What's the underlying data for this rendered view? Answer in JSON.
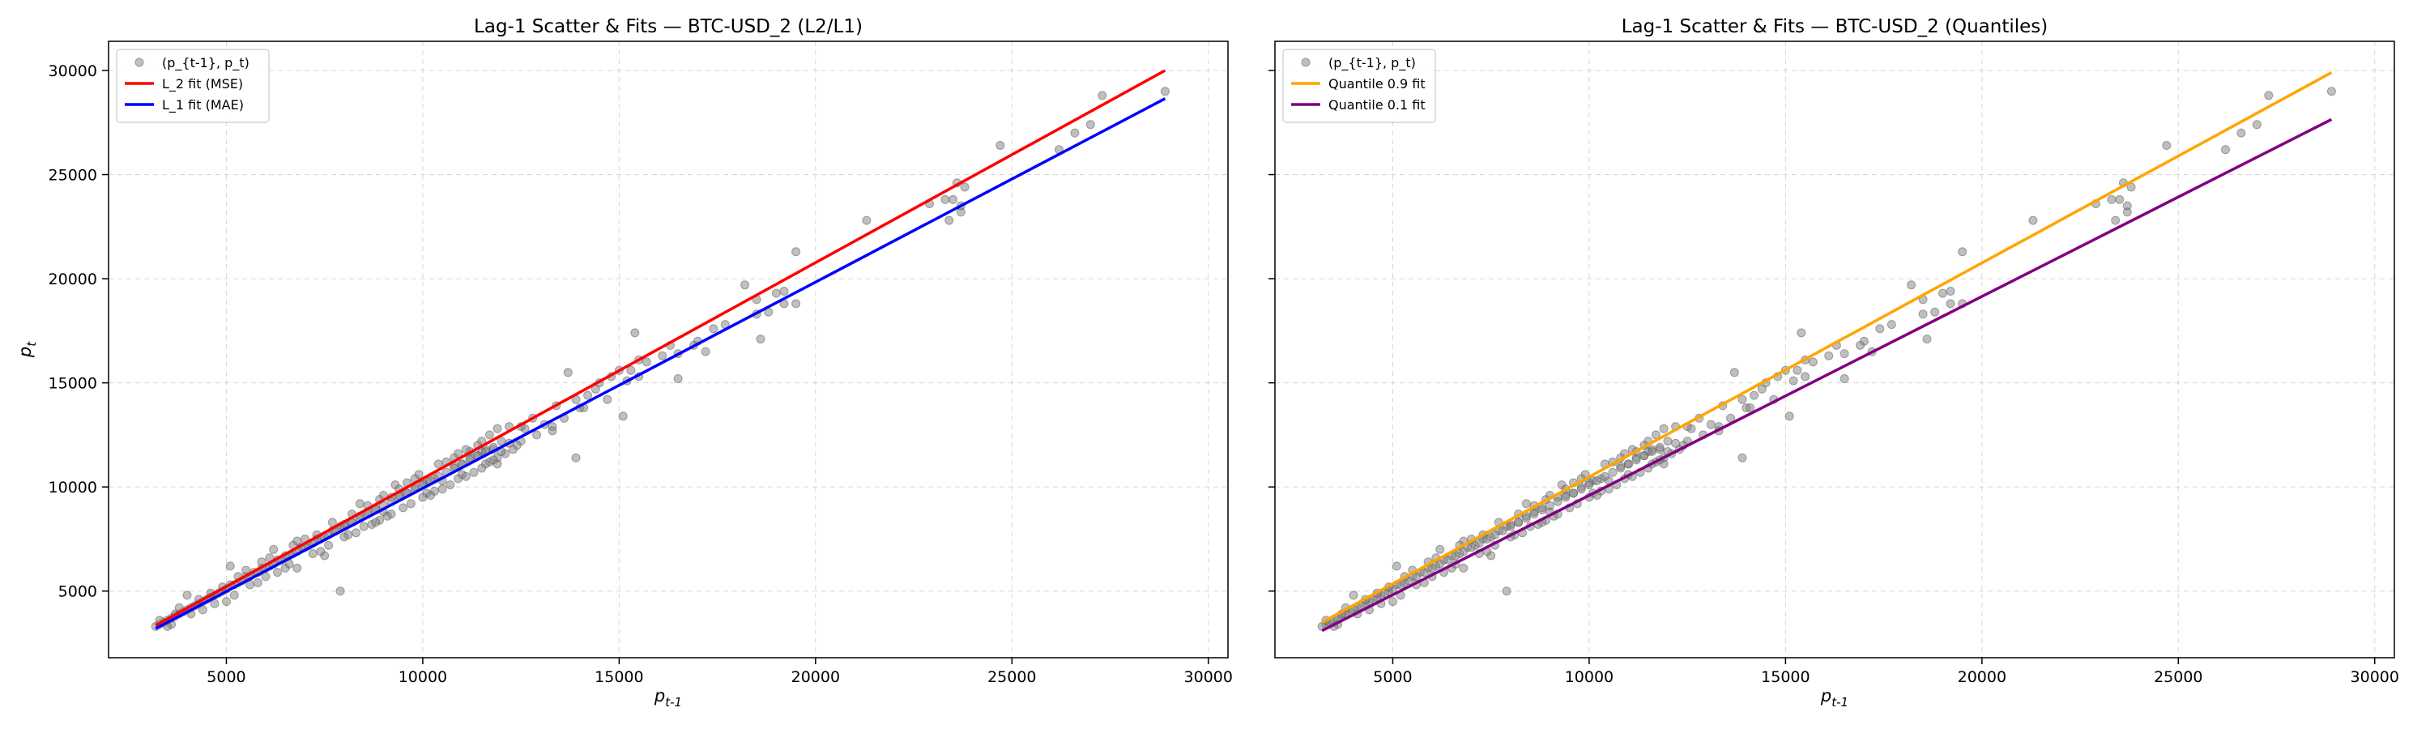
{
  "chart_data": [
    {
      "type": "scatter",
      "title": "Lag-1 Scatter & Fits — BTC-USD_2 (L2/L1)",
      "xlabel": "p_{t-1}",
      "ylabel": "p_t",
      "xlim": [
        2000,
        30500
      ],
      "ylim": [
        1800,
        31400
      ],
      "xticks": [
        5000,
        10000,
        15000,
        20000,
        25000,
        30000
      ],
      "yticks": [
        5000,
        10000,
        15000,
        20000,
        25000,
        30000
      ],
      "grid": true,
      "legend_position": "top-left",
      "scatter": {
        "name": "(p_{t-1}, p_t)",
        "color": "#808080"
      },
      "lines": [
        {
          "name": "L_2 fit (MSE)",
          "color": "#ff0000",
          "x": [
            3200,
            28900
          ],
          "y": [
            3350,
            30000
          ]
        },
        {
          "name": "L_1 fit (MAE)",
          "color": "#0000ff",
          "x": [
            3200,
            28900
          ],
          "y": [
            3200,
            28650
          ]
        }
      ]
    },
    {
      "type": "scatter",
      "title": "Lag-1 Scatter & Fits — BTC-USD_2 (Quantiles)",
      "xlabel": "p_{t-1}",
      "ylabel": "",
      "xlim": [
        2000,
        30500
      ],
      "ylim": [
        1800,
        31400
      ],
      "xticks": [
        5000,
        10000,
        15000,
        20000,
        25000,
        30000
      ],
      "yticks": [
        5000,
        10000,
        15000,
        20000,
        25000,
        30000
      ],
      "grid": true,
      "legend_position": "top-left",
      "scatter": {
        "name": "(p_{t-1}, p_t)",
        "color": "#808080"
      },
      "lines": [
        {
          "name": "Quantile 0.9 fit",
          "color": "#ffa500",
          "x": [
            3200,
            28900
          ],
          "y": [
            3500,
            29900
          ]
        },
        {
          "name": "Quantile 0.1 fit",
          "color": "#800080",
          "x": [
            3200,
            28900
          ],
          "y": [
            3100,
            27650
          ]
        }
      ]
    }
  ],
  "scatter_points": [
    [
      28900,
      29000
    ],
    [
      27300,
      28800
    ],
    [
      26600,
      27000
    ],
    [
      26200,
      26200
    ],
    [
      27000,
      27400
    ],
    [
      24700,
      26400
    ],
    [
      23800,
      24400
    ],
    [
      23600,
      24600
    ],
    [
      23500,
      23800
    ],
    [
      23700,
      23200
    ],
    [
      23300,
      23800
    ],
    [
      22900,
      23600
    ],
    [
      23700,
      23500
    ],
    [
      23400,
      22800
    ],
    [
      21300,
      22800
    ],
    [
      19500,
      21300
    ],
    [
      19200,
      19400
    ],
    [
      19000,
      19300
    ],
    [
      19500,
      18800
    ],
    [
      19200,
      18800
    ],
    [
      18500,
      19000
    ],
    [
      18200,
      19700
    ],
    [
      18500,
      18300
    ],
    [
      18600,
      17100
    ],
    [
      18800,
      18400
    ],
    [
      17700,
      17800
    ],
    [
      17400,
      17600
    ],
    [
      17000,
      17000
    ],
    [
      16900,
      16800
    ],
    [
      17200,
      16500
    ],
    [
      16500,
      16400
    ],
    [
      16300,
      16800
    ],
    [
      16100,
      16300
    ],
    [
      15700,
      16000
    ],
    [
      15500,
      16100
    ],
    [
      15500,
      15300
    ],
    [
      15300,
      15600
    ],
    [
      15200,
      15100
    ],
    [
      15000,
      15600
    ],
    [
      15400,
      17400
    ],
    [
      16500,
      15200
    ],
    [
      15100,
      13400
    ],
    [
      14800,
      15300
    ],
    [
      14500,
      15000
    ],
    [
      14400,
      14700
    ],
    [
      14200,
      14400
    ],
    [
      13900,
      14200
    ],
    [
      14000,
      13800
    ],
    [
      13700,
      15500
    ],
    [
      13600,
      13300
    ],
    [
      13900,
      11400
    ],
    [
      13400,
      13900
    ],
    [
      13300,
      12900
    ],
    [
      13100,
      13000
    ],
    [
      12800,
      13300
    ],
    [
      12600,
      12800
    ],
    [
      12500,
      12200
    ],
    [
      12400,
      12000
    ],
    [
      12200,
      12100
    ],
    [
      12300,
      11800
    ],
    [
      12000,
      12200
    ],
    [
      11900,
      11400
    ],
    [
      11800,
      11800
    ],
    [
      11700,
      12500
    ],
    [
      11600,
      11800
    ],
    [
      11500,
      11700
    ],
    [
      11400,
      11500
    ],
    [
      11200,
      11400
    ],
    [
      11000,
      10600
    ],
    [
      11900,
      12800
    ],
    [
      12200,
      12900
    ],
    [
      11000,
      11100
    ],
    [
      10800,
      11000
    ],
    [
      10500,
      10300
    ],
    [
      10300,
      10400
    ],
    [
      10100,
      10300
    ],
    [
      10000,
      10200
    ],
    [
      9800,
      10000
    ],
    [
      9600,
      9700
    ],
    [
      9400,
      9600
    ],
    [
      9200,
      9500
    ],
    [
      9000,
      8800
    ],
    [
      8800,
      9000
    ],
    [
      8600,
      8800
    ],
    [
      8400,
      8600
    ],
    [
      8200,
      8300
    ],
    [
      8000,
      8200
    ],
    [
      7900,
      8100
    ],
    [
      7700,
      7900
    ],
    [
      7500,
      7600
    ],
    [
      7300,
      7500
    ],
    [
      7100,
      7200
    ],
    [
      6900,
      7100
    ],
    [
      6700,
      6800
    ],
    [
      6500,
      6700
    ],
    [
      6300,
      6500
    ],
    [
      6100,
      6200
    ],
    [
      5900,
      6100
    ],
    [
      5700,
      5900
    ],
    [
      5500,
      5700
    ],
    [
      5300,
      5400
    ],
    [
      5100,
      5300
    ],
    [
      4900,
      5000
    ],
    [
      4700,
      4800
    ],
    [
      4500,
      4600
    ],
    [
      4300,
      4400
    ],
    [
      4100,
      4200
    ],
    [
      3900,
      4000
    ],
    [
      3700,
      3800
    ],
    [
      3500,
      3600
    ],
    [
      3300,
      3400
    ],
    [
      3200,
      3300
    ],
    [
      3400,
      3500
    ],
    [
      3600,
      3700
    ],
    [
      3800,
      3900
    ],
    [
      4000,
      4100
    ],
    [
      4200,
      4300
    ],
    [
      4400,
      4500
    ],
    [
      4600,
      4700
    ],
    [
      4800,
      4900
    ],
    [
      5000,
      5100
    ],
    [
      5200,
      5300
    ],
    [
      5400,
      5500
    ],
    [
      5600,
      5700
    ],
    [
      5800,
      5900
    ],
    [
      6000,
      6100
    ],
    [
      6200,
      6300
    ],
    [
      6400,
      6500
    ],
    [
      6600,
      6700
    ],
    [
      6800,
      6900
    ],
    [
      7000,
      7100
    ],
    [
      7200,
      7300
    ],
    [
      7400,
      7500
    ],
    [
      7600,
      7700
    ],
    [
      7800,
      7900
    ],
    [
      8000,
      8100
    ],
    [
      8200,
      8300
    ],
    [
      8400,
      8500
    ],
    [
      8600,
      8700
    ],
    [
      8800,
      8900
    ],
    [
      9000,
      9100
    ],
    [
      9200,
      9300
    ],
    [
      9400,
      9500
    ],
    [
      9600,
      9700
    ],
    [
      9800,
      9900
    ],
    [
      10000,
      10100
    ],
    [
      10200,
      10300
    ],
    [
      10400,
      10500
    ],
    [
      10600,
      10700
    ],
    [
      10800,
      10900
    ],
    [
      11000,
      11100
    ],
    [
      11200,
      11300
    ],
    [
      11400,
      11500
    ],
    [
      11600,
      11700
    ],
    [
      11800,
      11900
    ],
    [
      7900,
      5000
    ],
    [
      4000,
      4800
    ],
    [
      5100,
      6200
    ],
    [
      5000,
      4500
    ],
    [
      6200,
      7000
    ],
    [
      6800,
      6100
    ],
    [
      7500,
      6700
    ],
    [
      8100,
      7700
    ],
    [
      8400,
      9200
    ],
    [
      8700,
      8200
    ],
    [
      9100,
      8600
    ],
    [
      9300,
      10100
    ],
    [
      9700,
      9200
    ],
    [
      10100,
      9700
    ],
    [
      10400,
      11100
    ],
    [
      10700,
      10100
    ],
    [
      10900,
      11600
    ],
    [
      11300,
      10700
    ],
    [
      11500,
      12200
    ],
    [
      11700,
      11200
    ],
    [
      11900,
      11100
    ],
    [
      12100,
      11600
    ],
    [
      8900,
      8400
    ],
    [
      9500,
      9000
    ],
    [
      10300,
      9800
    ],
    [
      10600,
      11200
    ],
    [
      11100,
      10500
    ],
    [
      11400,
      12000
    ],
    [
      7200,
      6800
    ],
    [
      7700,
      8300
    ],
    [
      8300,
      7800
    ],
    [
      8900,
      9400
    ],
    [
      9900,
      10600
    ],
    [
      10500,
      9900
    ],
    [
      6500,
      6100
    ],
    [
      6800,
      7400
    ],
    [
      7400,
      6900
    ],
    [
      5800,
      5400
    ],
    [
      6100,
      6600
    ],
    [
      5500,
      6000
    ],
    [
      5200,
      4800
    ],
    [
      4600,
      4900
    ],
    [
      4400,
      4100
    ],
    [
      3800,
      4200
    ],
    [
      3600,
      3400
    ],
    [
      3300,
      3600
    ],
    [
      12500,
      12900
    ],
    [
      12900,
      12500
    ],
    [
      13300,
      12700
    ],
    [
      14100,
      13800
    ],
    [
      14700,
      14200
    ],
    [
      11200,
      11700
    ],
    [
      11600,
      11100
    ],
    [
      10000,
      9500
    ],
    [
      9400,
      9900
    ],
    [
      8600,
      9100
    ],
    [
      8000,
      7600
    ],
    [
      7300,
      7700
    ],
    [
      6700,
      7200
    ],
    [
      6300,
      5900
    ],
    [
      5900,
      6400
    ],
    [
      5600,
      5300
    ],
    [
      5300,
      5700
    ],
    [
      4900,
      5200
    ],
    [
      4700,
      4400
    ],
    [
      4300,
      4600
    ],
    [
      4100,
      3900
    ],
    [
      3700,
      3900
    ],
    [
      3500,
      3300
    ],
    [
      8200,
      8700
    ],
    [
      8500,
      8100
    ],
    [
      9800,
      10400
    ],
    [
      10200,
      9600
    ],
    [
      10900,
      10400
    ],
    [
      11100,
      11800
    ],
    [
      11800,
      11300
    ],
    [
      12000,
      11700
    ],
    [
      9600,
      10200
    ],
    [
      9000,
      9600
    ],
    [
      7600,
      7200
    ],
    [
      7000,
      7500
    ],
    [
      6600,
      6300
    ],
    [
      6000,
      5700
    ],
    [
      8800,
      8300
    ],
    [
      9200,
      8700
    ],
    [
      10800,
      11400
    ],
    [
      11500,
      10900
    ]
  ]
}
